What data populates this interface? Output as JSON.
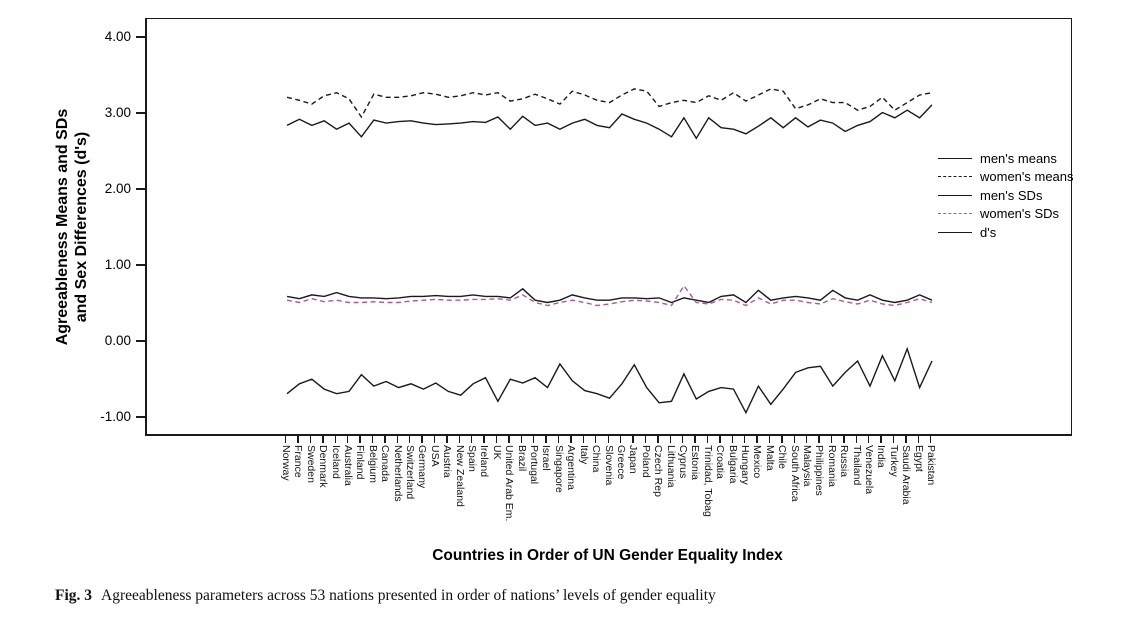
{
  "figure": {
    "y_axis_label_line1": "Agreeableness Means and SDs",
    "y_axis_label_line2": "and Sex Differences (d's)",
    "x_axis_title": "Countries in Order of UN Gender Equality Index",
    "caption_label": "Fig. 3",
    "caption_text": "Agreeableness parameters across 53 nations presented in order of nations’ levels of gender equality"
  },
  "chart_data": {
    "type": "line",
    "title": "",
    "xlabel": "Countries in Order of UN Gender Equality Index",
    "ylabel": "Agreeableness Means and SDs and Sex Differences (d's)",
    "ylim": [
      -1.26,
      4.25
    ],
    "yticks": [
      4.0,
      3.0,
      2.0,
      1.0,
      0.0,
      -1.0
    ],
    "ytick_labels": [
      "4.00",
      "3.00",
      "2.00",
      "1.00",
      "0.00",
      "-1.00"
    ],
    "grid": false,
    "legend_position": "inside-right",
    "line_color_default": "#1a1a1a",
    "womens_sd_color": "#b0569e",
    "categories": [
      "Norway",
      "France",
      "Sweden",
      "Denmark",
      "Iceland",
      "Australia",
      "Finland",
      "Belgium",
      "Canada",
      "Netherlands",
      "Switzerland",
      "Germany",
      "USA",
      "Austria",
      "New Zealand",
      "Spain",
      "Ireland",
      "UK",
      "United Arab Em.",
      "Brazil",
      "Portugal",
      "Israel",
      "Singapore",
      "Argentina",
      "Italy",
      "China",
      "Slovenia",
      "Greece",
      "Japan",
      "Poland",
      "Czech Rep",
      "Lithuania",
      "Cyprus",
      "Estonia",
      "Trinidad, Tobag",
      "Croatia",
      "Bulgaria",
      "Hungary",
      "Mexico",
      "Malta",
      "Chile",
      "South Africa",
      "Malaysia",
      "Philippines",
      "Romania",
      "Russia",
      "Thailand",
      "Venezuela",
      "India",
      "Turkey",
      "Saudi Arabia",
      "Egypt",
      "Pakistan"
    ],
    "series": [
      {
        "name": "men's means",
        "style": "solid",
        "color": "#1a1a1a",
        "values": [
          2.85,
          2.93,
          2.85,
          2.91,
          2.8,
          2.88,
          2.7,
          2.92,
          2.88,
          2.9,
          2.91,
          2.88,
          2.86,
          2.87,
          2.88,
          2.9,
          2.89,
          2.96,
          2.8,
          2.97,
          2.85,
          2.88,
          2.8,
          2.88,
          2.93,
          2.85,
          2.82,
          3.0,
          2.93,
          2.88,
          2.8,
          2.7,
          2.95,
          2.68,
          2.95,
          2.82,
          2.8,
          2.74,
          2.84,
          2.95,
          2.82,
          2.95,
          2.83,
          2.92,
          2.88,
          2.77,
          2.85,
          2.9,
          3.02,
          2.95,
          3.05,
          2.95,
          3.12
        ]
      },
      {
        "name": "women's means",
        "style": "dashed",
        "color": "#1a1a1a",
        "values": [
          3.22,
          3.18,
          3.13,
          3.24,
          3.28,
          3.2,
          2.96,
          3.26,
          3.22,
          3.22,
          3.24,
          3.28,
          3.26,
          3.22,
          3.24,
          3.28,
          3.25,
          3.28,
          3.17,
          3.2,
          3.26,
          3.2,
          3.13,
          3.3,
          3.25,
          3.18,
          3.15,
          3.25,
          3.33,
          3.3,
          3.1,
          3.15,
          3.18,
          3.15,
          3.24,
          3.18,
          3.28,
          3.17,
          3.25,
          3.33,
          3.3,
          3.07,
          3.12,
          3.2,
          3.15,
          3.15,
          3.05,
          3.1,
          3.22,
          3.05,
          3.15,
          3.25,
          3.28
        ]
      },
      {
        "name": "men's SDs",
        "style": "solid",
        "color": "#1a1a1a",
        "values": [
          0.6,
          0.57,
          0.62,
          0.6,
          0.65,
          0.6,
          0.58,
          0.58,
          0.57,
          0.58,
          0.6,
          0.6,
          0.61,
          0.6,
          0.6,
          0.62,
          0.6,
          0.6,
          0.58,
          0.7,
          0.55,
          0.52,
          0.55,
          0.62,
          0.58,
          0.55,
          0.55,
          0.58,
          0.58,
          0.57,
          0.58,
          0.52,
          0.58,
          0.55,
          0.52,
          0.6,
          0.62,
          0.52,
          0.68,
          0.55,
          0.58,
          0.6,
          0.58,
          0.55,
          0.68,
          0.58,
          0.55,
          0.62,
          0.55,
          0.52,
          0.55,
          0.62,
          0.55
        ]
      },
      {
        "name": "women's SDs",
        "style": "dashed",
        "color": "#b0569e",
        "values": [
          0.55,
          0.52,
          0.57,
          0.53,
          0.55,
          0.52,
          0.52,
          0.53,
          0.52,
          0.52,
          0.54,
          0.55,
          0.56,
          0.55,
          0.55,
          0.56,
          0.56,
          0.57,
          0.55,
          0.62,
          0.52,
          0.48,
          0.52,
          0.55,
          0.52,
          0.48,
          0.5,
          0.53,
          0.55,
          0.54,
          0.52,
          0.48,
          0.74,
          0.52,
          0.5,
          0.56,
          0.55,
          0.48,
          0.58,
          0.5,
          0.55,
          0.55,
          0.52,
          0.5,
          0.57,
          0.53,
          0.5,
          0.55,
          0.5,
          0.48,
          0.52,
          0.57,
          0.52
        ]
      },
      {
        "name": "d's",
        "style": "solid",
        "color": "#1a1a1a",
        "values": [
          -0.68,
          -0.55,
          -0.49,
          -0.62,
          -0.68,
          -0.65,
          -0.43,
          -0.58,
          -0.52,
          -0.6,
          -0.55,
          -0.62,
          -0.54,
          -0.65,
          -0.7,
          -0.55,
          -0.47,
          -0.78,
          -0.49,
          -0.54,
          -0.47,
          -0.6,
          -0.29,
          -0.51,
          -0.64,
          -0.68,
          -0.74,
          -0.55,
          -0.3,
          -0.6,
          -0.8,
          -0.78,
          -0.42,
          -0.75,
          -0.65,
          -0.6,
          -0.62,
          -0.93,
          -0.58,
          -0.82,
          -0.62,
          -0.4,
          -0.34,
          -0.32,
          -0.58,
          -0.4,
          -0.25,
          -0.58,
          -0.18,
          -0.51,
          -0.09,
          -0.6,
          -0.25
        ]
      }
    ]
  }
}
